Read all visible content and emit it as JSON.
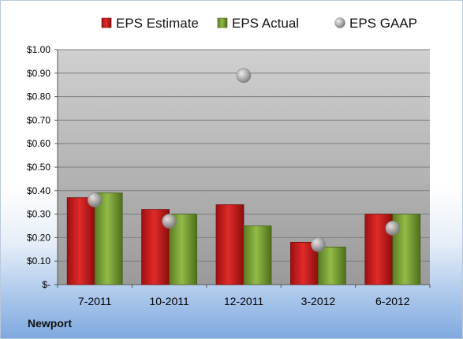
{
  "chart_data": {
    "type": "bar",
    "categories": [
      "7-2011",
      "10-2011",
      "12-2011",
      "3-2012",
      "6-2012"
    ],
    "series": [
      {
        "name": "EPS Estimate",
        "kind": "bar",
        "color": "#cc1f1f",
        "values": [
          0.37,
          0.32,
          0.34,
          0.18,
          0.3
        ]
      },
      {
        "name": "EPS Actual",
        "kind": "bar",
        "color": "#7ea436",
        "values": [
          0.39,
          0.3,
          0.25,
          0.16,
          0.3
        ]
      },
      {
        "name": "EPS GAAP",
        "kind": "marker",
        "color": "#b4b4b4",
        "values": [
          0.36,
          0.27,
          0.89,
          0.17,
          0.24
        ]
      }
    ],
    "ylim": [
      0,
      1.0
    ],
    "yticks": [
      {
        "value": 0.0,
        "label": "$-"
      },
      {
        "value": 0.1,
        "label": "$0.10"
      },
      {
        "value": 0.2,
        "label": "$0.20"
      },
      {
        "value": 0.3,
        "label": "$0.30"
      },
      {
        "value": 0.4,
        "label": "$0.40"
      },
      {
        "value": 0.5,
        "label": "$0.50"
      },
      {
        "value": 0.6,
        "label": "$0.60"
      },
      {
        "value": 0.7,
        "label": "$0.70"
      },
      {
        "value": 0.8,
        "label": "$0.80"
      },
      {
        "value": 0.9,
        "label": "$0.90"
      },
      {
        "value": 1.0,
        "label": "$1.00"
      }
    ],
    "grid": true,
    "legend_position": "top"
  },
  "footer": {
    "company": "Newport"
  }
}
